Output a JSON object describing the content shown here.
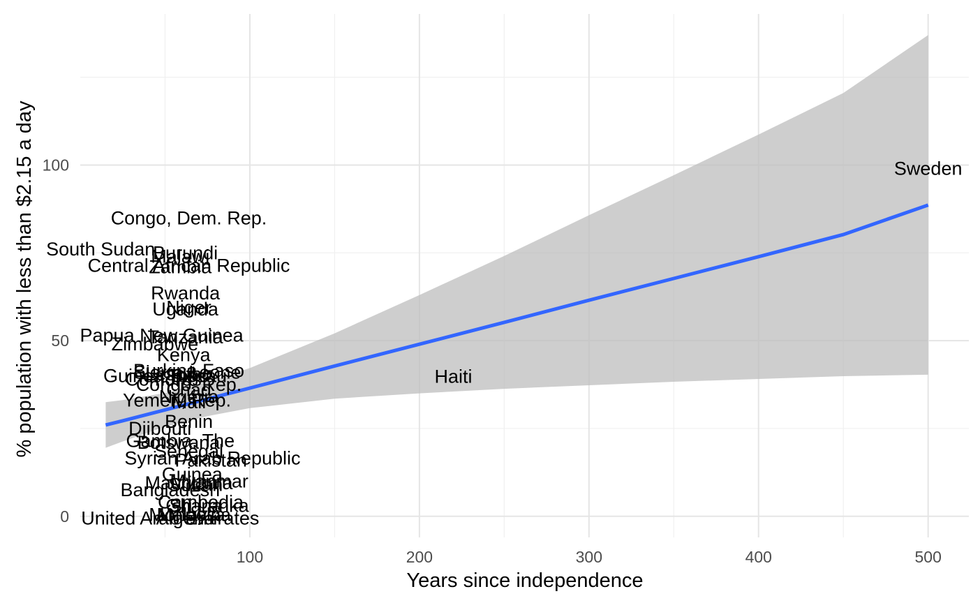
{
  "chart_data": {
    "type": "scatter",
    "title": "",
    "xlabel": "Years since independence",
    "ylabel": "% population with less than $2.15 a day",
    "xlim": [
      0,
      524
    ],
    "ylim": [
      -6,
      143
    ],
    "x_ticks": [
      100,
      200,
      300,
      400,
      500
    ],
    "y_ticks": [
      0,
      50,
      100
    ],
    "grid": true,
    "legend": "none",
    "colors": {
      "fit_line": "#3366ff",
      "confidence_band": "#bebebe",
      "grid": "#e5e5e5",
      "labels": "#000000"
    },
    "points": [
      {
        "label": "Congo, Dem. Rep.",
        "x": 64,
        "y": 84.9
      },
      {
        "label": "South Sudan",
        "x": 12,
        "y": 76.0
      },
      {
        "label": "Burundi",
        "x": 62,
        "y": 75.0
      },
      {
        "label": "Malawi",
        "x": 59,
        "y": 74.0
      },
      {
        "label": "Central African Republic",
        "x": 64,
        "y": 71.4
      },
      {
        "label": "Zambia",
        "x": 59,
        "y": 71.0
      },
      {
        "label": "Rwanda",
        "x": 62,
        "y": 63.5
      },
      {
        "label": "Niger",
        "x": 64,
        "y": 59.5
      },
      {
        "label": "Uganda",
        "x": 62,
        "y": 59.0
      },
      {
        "label": "Papua New Guinea",
        "x": 48,
        "y": 51.5
      },
      {
        "label": "Tanzania",
        "x": 62,
        "y": 51.0
      },
      {
        "label": "Zimbabwe",
        "x": 44,
        "y": 49.0
      },
      {
        "label": "Kenya",
        "x": 61,
        "y": 46.0
      },
      {
        "label": "Burkina Faso",
        "x": 64,
        "y": 41.5
      },
      {
        "label": "Sierra Leone",
        "x": 63,
        "y": 41.0
      },
      {
        "label": "Lesotho",
        "x": 58,
        "y": 40.5
      },
      {
        "label": "Guinea-Bissau",
        "x": 50,
        "y": 40.0
      },
      {
        "label": "Togo",
        "x": 64,
        "y": 40.0
      },
      {
        "label": "Comoros",
        "x": 49,
        "y": 39.0
      },
      {
        "label": "Congo, Rep.",
        "x": 64,
        "y": 37.5
      },
      {
        "label": "Haiti",
        "x": 220,
        "y": 39.8
      },
      {
        "label": "Chad",
        "x": 64,
        "y": 36.0
      },
      {
        "label": "Nigeria",
        "x": 64,
        "y": 34.0
      },
      {
        "label": "Yemen, Rep.",
        "x": 57,
        "y": 33.0
      },
      {
        "label": "Mali",
        "x": 64,
        "y": 32.5
      },
      {
        "label": "Benin",
        "x": 64,
        "y": 27.0
      },
      {
        "label": "Djibouti",
        "x": 47,
        "y": 25.0
      },
      {
        "label": "Gambia, The",
        "x": 59,
        "y": 21.5
      },
      {
        "label": "Botswana",
        "x": 58,
        "y": 21.0
      },
      {
        "label": "Syrian Arab Republic",
        "x": 78,
        "y": 16.5
      },
      {
        "label": "Pakistan",
        "x": 77,
        "y": 16.0
      },
      {
        "label": "Senegal",
        "x": 64,
        "y": 18.5
      },
      {
        "label": "Guinea",
        "x": 66,
        "y": 12.0
      },
      {
        "label": "Myanmar",
        "x": 76,
        "y": 10.0
      },
      {
        "label": "Mauritania",
        "x": 64,
        "y": 9.5
      },
      {
        "label": "Sudan",
        "x": 68,
        "y": 9.0
      },
      {
        "label": "Bangladesh",
        "x": 53,
        "y": 7.5
      },
      {
        "label": "Cambodia",
        "x": 71,
        "y": 4.0
      },
      {
        "label": "Ghana",
        "x": 67,
        "y": 3.0
      },
      {
        "label": "Sri Lanka",
        "x": 76,
        "y": 3.0
      },
      {
        "label": "Malaysia",
        "x": 67,
        "y": 0.5
      },
      {
        "label": "Mongolia",
        "x": 63,
        "y": 0.5
      },
      {
        "label": "Algeria",
        "x": 62,
        "y": -0.5
      },
      {
        "label": "United Arab Emirates",
        "x": 53,
        "y": -0.5
      },
      {
        "label": "Sweden",
        "x": 500,
        "y": 99.0
      }
    ],
    "fit": {
      "method": "linear",
      "x": [
        15,
        25,
        50,
        75,
        100,
        150,
        200,
        250,
        300,
        350,
        400,
        450,
        500
      ],
      "y": [
        26.0,
        27.2,
        30.3,
        33.4,
        36.5,
        42.8,
        49.0,
        55.2,
        61.5,
        67.7,
        73.9,
        80.2,
        88.6
      ],
      "lower": [
        19.5,
        21.3,
        25.5,
        28.5,
        30.8,
        33.5,
        35.0,
        36.3,
        37.3,
        38.3,
        39.1,
        39.9,
        40.3
      ],
      "upper": [
        32.5,
        33.1,
        35.1,
        38.3,
        42.2,
        52.1,
        63.0,
        74.1,
        85.7,
        97.1,
        108.7,
        120.5,
        137.0
      ]
    }
  }
}
